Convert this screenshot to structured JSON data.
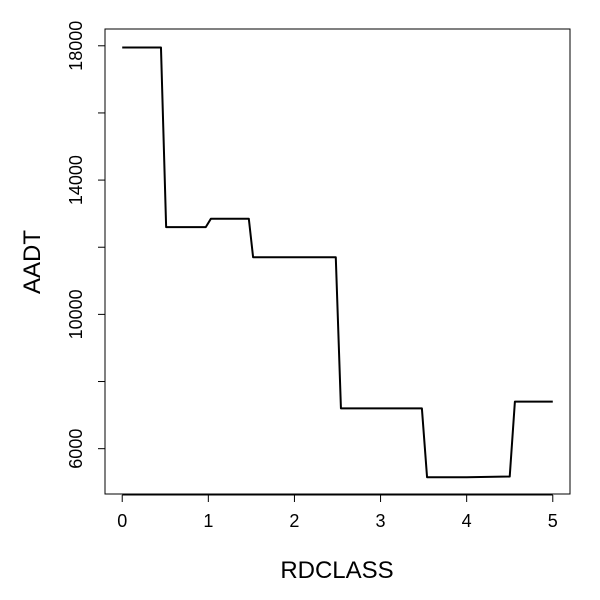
{
  "chart_data": {
    "type": "line",
    "title": "",
    "xlabel": "RDCLASS",
    "ylabel": "AADT",
    "xlim": [
      -0.2,
      5.2
    ],
    "ylim": [
      4650,
      18500
    ],
    "x_ticks": [
      0,
      1,
      2,
      3,
      4,
      5
    ],
    "x_tick_labels": [
      "0",
      "1",
      "2",
      "3",
      "4",
      "5"
    ],
    "y_ticks": [
      6000,
      8000,
      10000,
      12000,
      14000,
      16000,
      18000
    ],
    "y_tick_labels": [
      "6000",
      "",
      "10000",
      "",
      "14000",
      "",
      "18000"
    ],
    "grid": false,
    "legend": "none",
    "line_color": "#000000",
    "series": [
      {
        "x": [
          0,
          0.45,
          0.51,
          0.97,
          1.03,
          1.47,
          1.52,
          2.48,
          2.54,
          3.48,
          3.54,
          4.0,
          4.5,
          4.56,
          5.0
        ],
        "y": [
          17950,
          17950,
          12600,
          12600,
          12850,
          12850,
          11700,
          11700,
          7200,
          7200,
          5150,
          5150,
          5170,
          7400,
          7400
        ]
      }
    ]
  }
}
